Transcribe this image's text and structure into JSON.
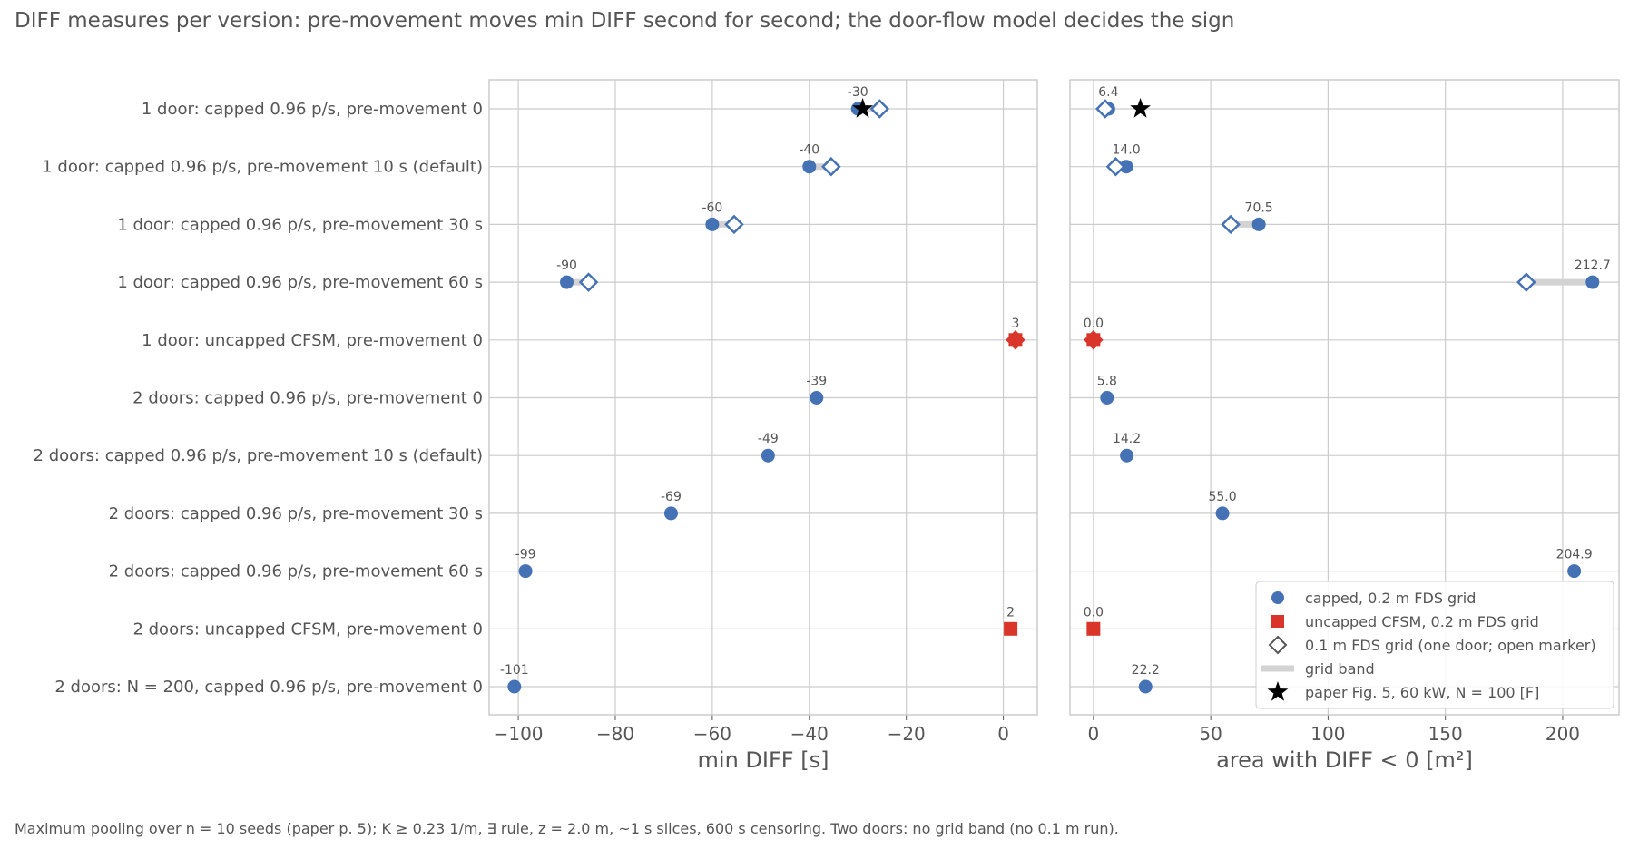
{
  "title": "DIFF measures per version: pre-movement moves min DIFF second for second; the door-flow model decides the sign",
  "footnote": "Maximum pooling over n = 10 seeds (paper p. 5); K ≥ 0.23 1/m, ∃ rule, z = 2.0 m, ~1 s slices, 600 s censoring. Two doors: no grid band (no 0.1 m run).",
  "colors": {
    "capped": "#4572b5",
    "uncapped": "#d9352a",
    "band": "#d3d3d3",
    "paper": "#000000",
    "grid": "#cccccc",
    "text": "#555555"
  },
  "chart_data": [
    {
      "type": "scatter",
      "xlabel": "min DIFF [s]",
      "xlim": [
        -106,
        7
      ],
      "xticks": [
        -100,
        -80,
        -60,
        -40,
        -20,
        0
      ],
      "xtick_labels": [
        "−100",
        "−80",
        "−60",
        "−40",
        "−20",
        "0"
      ],
      "categories": [
        "1 door: capped 0.96 p/s, pre-movement 0",
        "1 door: capped 0.96 p/s, pre-movement 10 s (default)",
        "1 door: capped 0.96 p/s, pre-movement 30 s",
        "1 door: capped 0.96 p/s, pre-movement 60 s",
        "1 door: uncapped CFSM, pre-movement 0",
        "2 doors: capped 0.96 p/s, pre-movement 0",
        "2 doors: capped 0.96 p/s, pre-movement 10 s (default)",
        "2 doors: capped 0.96 p/s, pre-movement 30 s",
        "2 doors: capped 0.96 p/s, pre-movement 60 s",
        "2 doors: uncapped CFSM, pre-movement 0",
        "2 doors: N = 200, capped 0.96 p/s, pre-movement 0"
      ],
      "points": [
        {
          "value": -30,
          "label": "-30",
          "kind": "capped",
          "fine": -25.5
        },
        {
          "value": -40,
          "label": "-40",
          "kind": "capped",
          "fine": -35.5
        },
        {
          "value": -60,
          "label": "-60",
          "kind": "capped",
          "fine": -55.5
        },
        {
          "value": -90,
          "label": "-90",
          "kind": "capped",
          "fine": -85.5
        },
        {
          "value": 2.5,
          "label": "3",
          "kind": "uncapped",
          "fine": 2.5
        },
        {
          "value": -38.5,
          "label": "-39",
          "kind": "capped"
        },
        {
          "value": -48.5,
          "label": "-49",
          "kind": "capped"
        },
        {
          "value": -68.5,
          "label": "-69",
          "kind": "capped"
        },
        {
          "value": -98.5,
          "label": "-99",
          "kind": "capped"
        },
        {
          "value": 1.5,
          "label": "2",
          "kind": "uncapped"
        },
        {
          "value": -100.8,
          "label": "-101",
          "kind": "capped"
        }
      ],
      "paper_star": {
        "row": 0,
        "value": -29
      }
    },
    {
      "type": "scatter",
      "xlabel": "area with DIFF < 0 [m²]",
      "xlim": [
        -10,
        224
      ],
      "xticks": [
        0,
        50,
        100,
        150,
        200
      ],
      "xtick_labels": [
        "0",
        "50",
        "100",
        "150",
        "200"
      ],
      "points": [
        {
          "value": 6.4,
          "label": "6.4",
          "kind": "capped",
          "fine": 5.0
        },
        {
          "value": 14.0,
          "label": "14.0",
          "kind": "capped",
          "fine": 9.5
        },
        {
          "value": 70.5,
          "label": "70.5",
          "kind": "capped",
          "fine": 58.5
        },
        {
          "value": 212.7,
          "label": "212.7",
          "kind": "capped",
          "fine": 184.5
        },
        {
          "value": 0.0,
          "label": "0.0",
          "kind": "uncapped",
          "fine": 0.0
        },
        {
          "value": 5.8,
          "label": "5.8",
          "kind": "capped"
        },
        {
          "value": 14.2,
          "label": "14.2",
          "kind": "capped"
        },
        {
          "value": 55.0,
          "label": "55.0",
          "kind": "capped"
        },
        {
          "value": 204.9,
          "label": "204.9",
          "kind": "capped"
        },
        {
          "value": 0.0,
          "label": "0.0",
          "kind": "uncapped"
        },
        {
          "value": 22.2,
          "label": "22.2",
          "kind": "capped"
        }
      ],
      "paper_star": {
        "row": 0,
        "value": 20
      }
    }
  ],
  "legend": {
    "placement": "lower-right",
    "entries": [
      {
        "label": "capped, 0.2 m FDS grid",
        "marker": "circle"
      },
      {
        "label": "uncapped CFSM, 0.2 m FDS grid",
        "marker": "square"
      },
      {
        "label": "0.1 m FDS grid (one door; open marker)",
        "marker": "open-diamond"
      },
      {
        "label": "grid band",
        "marker": "band"
      },
      {
        "label": "paper Fig. 5, 60 kW, N = 100 [F]",
        "marker": "star"
      }
    ]
  }
}
